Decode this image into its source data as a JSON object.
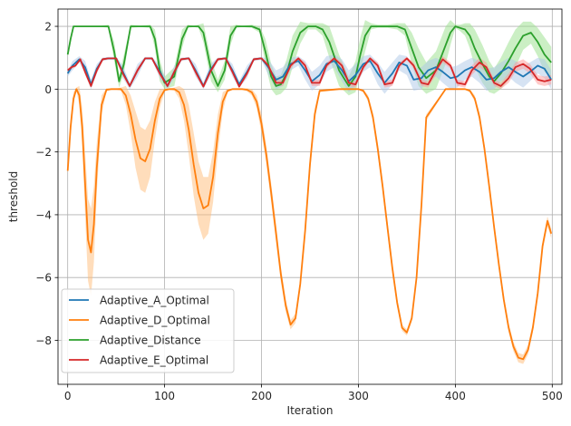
{
  "chart_data": {
    "type": "line",
    "title": "",
    "xlabel": "Iteration",
    "ylabel": "threshold",
    "xlim": [
      -10,
      510
    ],
    "ylim": [
      -9.4,
      2.55
    ],
    "xticks": [
      0,
      100,
      200,
      300,
      400,
      500
    ],
    "yticks": [
      2,
      0,
      -2,
      -4,
      -6,
      -8
    ],
    "xtick_labels": [
      "0",
      "100",
      "200",
      "300",
      "400",
      "500"
    ],
    "ytick_labels": [
      "2",
      "0",
      "−2",
      "−4",
      "−6",
      "−8"
    ],
    "grid": true,
    "legend_position": "lower-left",
    "series": [
      {
        "name": "Adaptive_A_Optimal",
        "color": "#1f77b4",
        "band_color": "#aec7e8",
        "x": [
          0,
          5,
          12,
          18,
          24,
          30,
          36,
          42,
          50,
          57,
          64,
          72,
          80,
          87,
          95,
          103,
          110,
          117,
          125,
          132,
          140,
          147,
          155,
          163,
          170,
          177,
          185,
          192,
          200,
          207,
          215,
          222,
          230,
          238,
          245,
          252,
          260,
          267,
          275,
          283,
          290,
          297,
          305,
          312,
          320,
          327,
          335,
          342,
          350,
          357,
          365,
          372,
          380,
          387,
          395,
          402,
          410,
          417,
          425,
          432,
          440,
          447,
          455,
          462,
          470,
          477,
          485,
          492,
          499
        ],
        "y": [
          0.5,
          0.75,
          0.95,
          0.7,
          0.15,
          0.65,
          0.95,
          0.98,
          0.98,
          0.55,
          0.1,
          0.6,
          0.98,
          0.98,
          0.55,
          0.1,
          0.55,
          0.95,
          0.98,
          0.6,
          0.1,
          0.6,
          0.95,
          0.98,
          0.6,
          0.15,
          0.55,
          0.95,
          0.98,
          0.7,
          0.3,
          0.4,
          0.8,
          0.9,
          0.6,
          0.25,
          0.45,
          0.8,
          0.9,
          0.6,
          0.25,
          0.45,
          0.8,
          0.9,
          0.5,
          0.2,
          0.5,
          0.85,
          0.75,
          0.3,
          0.35,
          0.6,
          0.7,
          0.55,
          0.35,
          0.4,
          0.6,
          0.7,
          0.55,
          0.3,
          0.35,
          0.55,
          0.7,
          0.55,
          0.4,
          0.55,
          0.75,
          0.65,
          0.3
        ],
        "band": [
          0.1,
          0.15,
          0.1,
          0.2,
          0.15,
          0.15,
          0.05,
          0.05,
          0.05,
          0.2,
          0.1,
          0.2,
          0.05,
          0.05,
          0.2,
          0.1,
          0.2,
          0.05,
          0.05,
          0.2,
          0.1,
          0.2,
          0.05,
          0.05,
          0.2,
          0.1,
          0.2,
          0.05,
          0.05,
          0.25,
          0.3,
          0.3,
          0.2,
          0.15,
          0.3,
          0.3,
          0.3,
          0.25,
          0.2,
          0.35,
          0.35,
          0.35,
          0.25,
          0.2,
          0.35,
          0.35,
          0.35,
          0.25,
          0.3,
          0.35,
          0.35,
          0.3,
          0.3,
          0.35,
          0.35,
          0.35,
          0.3,
          0.3,
          0.35,
          0.35,
          0.35,
          0.3,
          0.3,
          0.35,
          0.35,
          0.3,
          0.25,
          0.3,
          0.3
        ]
      },
      {
        "name": "Adaptive_D_Optimal",
        "color": "#ff7f0e",
        "band_color": "#ffbb78",
        "x": [
          0,
          3,
          6,
          9,
          12,
          15,
          18,
          21,
          24,
          27,
          30,
          35,
          40,
          45,
          50,
          55,
          60,
          65,
          70,
          75,
          80,
          85,
          90,
          95,
          100,
          105,
          110,
          115,
          120,
          125,
          130,
          135,
          140,
          145,
          150,
          155,
          160,
          165,
          170,
          175,
          180,
          185,
          190,
          195,
          200,
          205,
          210,
          215,
          220,
          225,
          230,
          235,
          240,
          245,
          250,
          255,
          260,
          280,
          300,
          305,
          310,
          315,
          320,
          325,
          330,
          335,
          340,
          345,
          350,
          355,
          360,
          365,
          370,
          390,
          410,
          415,
          420,
          425,
          430,
          435,
          440,
          445,
          450,
          455,
          460,
          465,
          470,
          475,
          480,
          485,
          490,
          495,
          499
        ],
        "y": [
          -2.6,
          -1.2,
          -0.3,
          0,
          -0.2,
          -1.2,
          -3.0,
          -4.8,
          -5.2,
          -4.3,
          -2.5,
          -0.5,
          -0.02,
          0,
          0,
          0,
          -0.2,
          -0.8,
          -1.6,
          -2.2,
          -2.3,
          -1.9,
          -1.0,
          -0.3,
          -0.03,
          0,
          0,
          -0.1,
          -0.5,
          -1.3,
          -2.4,
          -3.3,
          -3.8,
          -3.7,
          -2.8,
          -1.4,
          -0.4,
          -0.05,
          0,
          0,
          0,
          -0.02,
          -0.1,
          -0.4,
          -1.1,
          -2.1,
          -3.3,
          -4.6,
          -5.9,
          -6.9,
          -7.5,
          -7.3,
          -6.2,
          -4.5,
          -2.4,
          -0.8,
          -0.05,
          0,
          0,
          -0.05,
          -0.3,
          -0.9,
          -1.9,
          -3.1,
          -4.4,
          -5.7,
          -6.8,
          -7.6,
          -7.75,
          -7.3,
          -6.0,
          -3.7,
          -0.9,
          0,
          0,
          -0.05,
          -0.3,
          -0.9,
          -1.9,
          -3.1,
          -4.4,
          -5.6,
          -6.7,
          -7.6,
          -8.2,
          -8.55,
          -8.6,
          -8.3,
          -7.6,
          -6.5,
          -5.0,
          -4.2,
          -4.6
        ],
        "band": [
          0.1,
          0.3,
          0.2,
          0.05,
          0.3,
          0.6,
          1.0,
          1.3,
          1.4,
          1.2,
          0.8,
          0.3,
          0.05,
          0.02,
          0.02,
          0.05,
          0.3,
          0.6,
          0.9,
          1.0,
          1.0,
          0.9,
          0.6,
          0.3,
          0.05,
          0.02,
          0.05,
          0.2,
          0.5,
          0.8,
          1.0,
          1.0,
          1.0,
          0.9,
          0.8,
          0.6,
          0.3,
          0.05,
          0.02,
          0.02,
          0.02,
          0.05,
          0.1,
          0.2,
          0.3,
          0.3,
          0.3,
          0.3,
          0.25,
          0.2,
          0.15,
          0.15,
          0.15,
          0.2,
          0.25,
          0.2,
          0.05,
          0.02,
          0.02,
          0.05,
          0.1,
          0.15,
          0.2,
          0.2,
          0.2,
          0.2,
          0.15,
          0.1,
          0.1,
          0.1,
          0.15,
          0.15,
          0.1,
          0.02,
          0.02,
          0.05,
          0.1,
          0.15,
          0.15,
          0.15,
          0.15,
          0.15,
          0.15,
          0.15,
          0.15,
          0.15,
          0.15,
          0.15,
          0.15,
          0.15,
          0.15,
          0.15,
          0.15
        ]
      },
      {
        "name": "Adaptive_Distance",
        "color": "#2ca02c",
        "band_color": "#98df8a",
        "x": [
          0,
          3,
          6,
          9,
          15,
          25,
          35,
          42,
          48,
          53,
          58,
          65,
          75,
          85,
          90,
          95,
          100,
          110,
          118,
          124,
          130,
          135,
          140,
          148,
          155,
          162,
          168,
          174,
          180,
          190,
          198,
          204,
          210,
          215,
          220,
          226,
          232,
          240,
          248,
          256,
          263,
          270,
          280,
          290,
          297,
          302,
          307,
          313,
          320,
          330,
          340,
          348,
          355,
          362,
          370,
          380,
          390,
          395,
          400,
          405,
          410,
          415,
          420,
          428,
          435,
          440,
          447,
          455,
          462,
          470,
          478,
          485,
          492,
          499
        ],
        "y": [
          1.1,
          1.6,
          2.0,
          2.0,
          2.0,
          2.0,
          2.0,
          2.0,
          1.2,
          0.25,
          0.8,
          2.0,
          2.0,
          2.0,
          1.6,
          0.6,
          0.2,
          0.4,
          1.6,
          2.0,
          2.0,
          2.0,
          1.8,
          0.6,
          0.1,
          0.6,
          1.7,
          2.0,
          2.0,
          2.0,
          1.9,
          1.2,
          0.4,
          0.1,
          0.15,
          0.5,
          1.2,
          1.8,
          2.0,
          2.0,
          1.9,
          1.5,
          0.6,
          0.1,
          0.4,
          1.1,
          1.7,
          2.0,
          2.0,
          2.0,
          2.0,
          1.9,
          1.3,
          0.7,
          0.35,
          0.6,
          1.4,
          1.8,
          2.0,
          1.95,
          1.9,
          1.7,
          1.3,
          0.8,
          0.4,
          0.25,
          0.5,
          0.9,
          1.3,
          1.7,
          1.8,
          1.5,
          1.1,
          0.85
        ],
        "band": [
          0.05,
          0.05,
          0.02,
          0.02,
          0.02,
          0.02,
          0.02,
          0.05,
          0.3,
          0.2,
          0.3,
          0.05,
          0.02,
          0.05,
          0.3,
          0.35,
          0.2,
          0.3,
          0.3,
          0.05,
          0.02,
          0.05,
          0.3,
          0.35,
          0.2,
          0.3,
          0.3,
          0.05,
          0.02,
          0.05,
          0.1,
          0.4,
          0.4,
          0.3,
          0.3,
          0.45,
          0.5,
          0.35,
          0.1,
          0.1,
          0.2,
          0.5,
          0.5,
          0.3,
          0.5,
          0.55,
          0.5,
          0.1,
          0.05,
          0.05,
          0.1,
          0.2,
          0.5,
          0.6,
          0.5,
          0.6,
          0.6,
          0.4,
          0.05,
          0.1,
          0.2,
          0.4,
          0.6,
          0.6,
          0.5,
          0.4,
          0.5,
          0.6,
          0.6,
          0.45,
          0.35,
          0.45,
          0.55,
          0.5
        ]
      },
      {
        "name": "Adaptive_E_Optimal",
        "color": "#d62728",
        "band_color": "#ff9896",
        "x": [
          0,
          4,
          8,
          13,
          18,
          24,
          30,
          36,
          42,
          50,
          57,
          64,
          72,
          80,
          87,
          95,
          103,
          110,
          117,
          125,
          132,
          140,
          147,
          155,
          163,
          170,
          177,
          185,
          192,
          200,
          207,
          215,
          222,
          230,
          238,
          245,
          252,
          260,
          267,
          275,
          283,
          290,
          297,
          305,
          312,
          320,
          327,
          335,
          342,
          350,
          357,
          365,
          372,
          380,
          387,
          395,
          402,
          410,
          417,
          425,
          432,
          440,
          447,
          455,
          462,
          470,
          477,
          485,
          492,
          499
        ],
        "y": [
          0.6,
          0.7,
          0.75,
          0.95,
          0.55,
          0.1,
          0.6,
          0.95,
          0.98,
          0.98,
          0.5,
          0.1,
          0.6,
          0.98,
          0.98,
          0.5,
          0.1,
          0.55,
          0.95,
          0.98,
          0.55,
          0.08,
          0.55,
          0.95,
          0.98,
          0.55,
          0.08,
          0.5,
          0.95,
          0.98,
          0.75,
          0.2,
          0.2,
          0.75,
          0.98,
          0.75,
          0.2,
          0.2,
          0.75,
          0.98,
          0.75,
          0.2,
          0.15,
          0.7,
          0.98,
          0.75,
          0.15,
          0.2,
          0.75,
          0.98,
          0.75,
          0.2,
          0.15,
          0.6,
          0.95,
          0.75,
          0.2,
          0.15,
          0.6,
          0.85,
          0.7,
          0.2,
          0.1,
          0.35,
          0.7,
          0.8,
          0.65,
          0.3,
          0.25,
          0.3
        ],
        "band": [
          0.05,
          0.05,
          0.05,
          0.05,
          0.1,
          0.05,
          0.1,
          0.05,
          0.02,
          0.02,
          0.1,
          0.05,
          0.1,
          0.02,
          0.02,
          0.1,
          0.05,
          0.1,
          0.05,
          0.02,
          0.1,
          0.05,
          0.1,
          0.05,
          0.02,
          0.1,
          0.05,
          0.1,
          0.05,
          0.02,
          0.1,
          0.1,
          0.1,
          0.1,
          0.05,
          0.1,
          0.1,
          0.1,
          0.1,
          0.05,
          0.1,
          0.1,
          0.1,
          0.1,
          0.05,
          0.1,
          0.1,
          0.1,
          0.1,
          0.05,
          0.1,
          0.1,
          0.1,
          0.15,
          0.1,
          0.1,
          0.1,
          0.1,
          0.15,
          0.15,
          0.15,
          0.1,
          0.1,
          0.15,
          0.15,
          0.15,
          0.15,
          0.15,
          0.15,
          0.15
        ]
      }
    ]
  }
}
